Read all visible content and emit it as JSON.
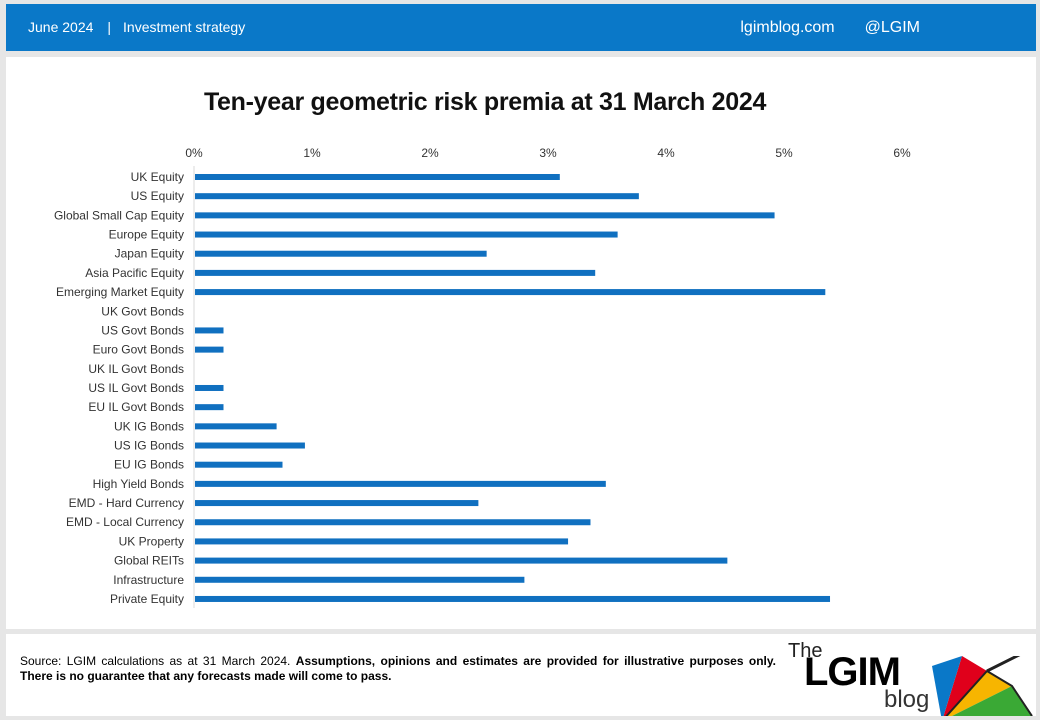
{
  "header": {
    "date": "June 2024",
    "separator": "|",
    "category": "Investment strategy",
    "site": "lgimblog.com",
    "handle": "@LGIM"
  },
  "chart_data": {
    "type": "bar",
    "orientation": "horizontal",
    "title": "Ten-year geometric risk premia at 31 March 2024",
    "xlabel": "",
    "ylabel": "",
    "xlim": [
      0,
      6
    ],
    "xticks": [
      "0%",
      "1%",
      "2%",
      "3%",
      "4%",
      "5%",
      "6%"
    ],
    "grid": false,
    "legend": "none",
    "color": "#1070c0",
    "categories": [
      "UK Equity",
      "US Equity",
      "Global Small Cap Equity",
      "Europe Equity",
      "Japan Equity",
      "Asia Pacific Equity",
      "Emerging Market Equity",
      "UK Govt Bonds",
      "US Govt Bonds",
      "Euro Govt Bonds",
      "UK IL Govt Bonds",
      "US IL Govt Bonds",
      "EU IL Govt Bonds",
      "UK IG Bonds",
      "US IG Bonds",
      "EU IG Bonds",
      "High Yield Bonds",
      "EMD - Hard Currency",
      "EMD - Local Currency",
      "UK Property",
      "Global REITs",
      "Infrastructure",
      "Private Equity"
    ],
    "values": [
      3.1,
      3.77,
      4.92,
      3.59,
      2.48,
      3.4,
      5.35,
      0,
      0.25,
      0.25,
      0,
      0.25,
      0.25,
      0.7,
      0.94,
      0.75,
      3.49,
      2.41,
      3.36,
      3.17,
      4.52,
      2.8,
      5.39
    ]
  },
  "footer": {
    "source_text": "Source: LGIM calculations as at 31 March 2024.",
    "disclaimer": "Assumptions, opinions and estimates are provided for illustrative purposes only. There is no guarantee that any forecasts made will come to pass."
  },
  "logo": {
    "the": "The",
    "name": "LGIM",
    "blog": "blog",
    "colors": [
      "#e0001b",
      "#f7b500",
      "#3aa935",
      "#0a78c8",
      "#f0f0f0"
    ]
  }
}
